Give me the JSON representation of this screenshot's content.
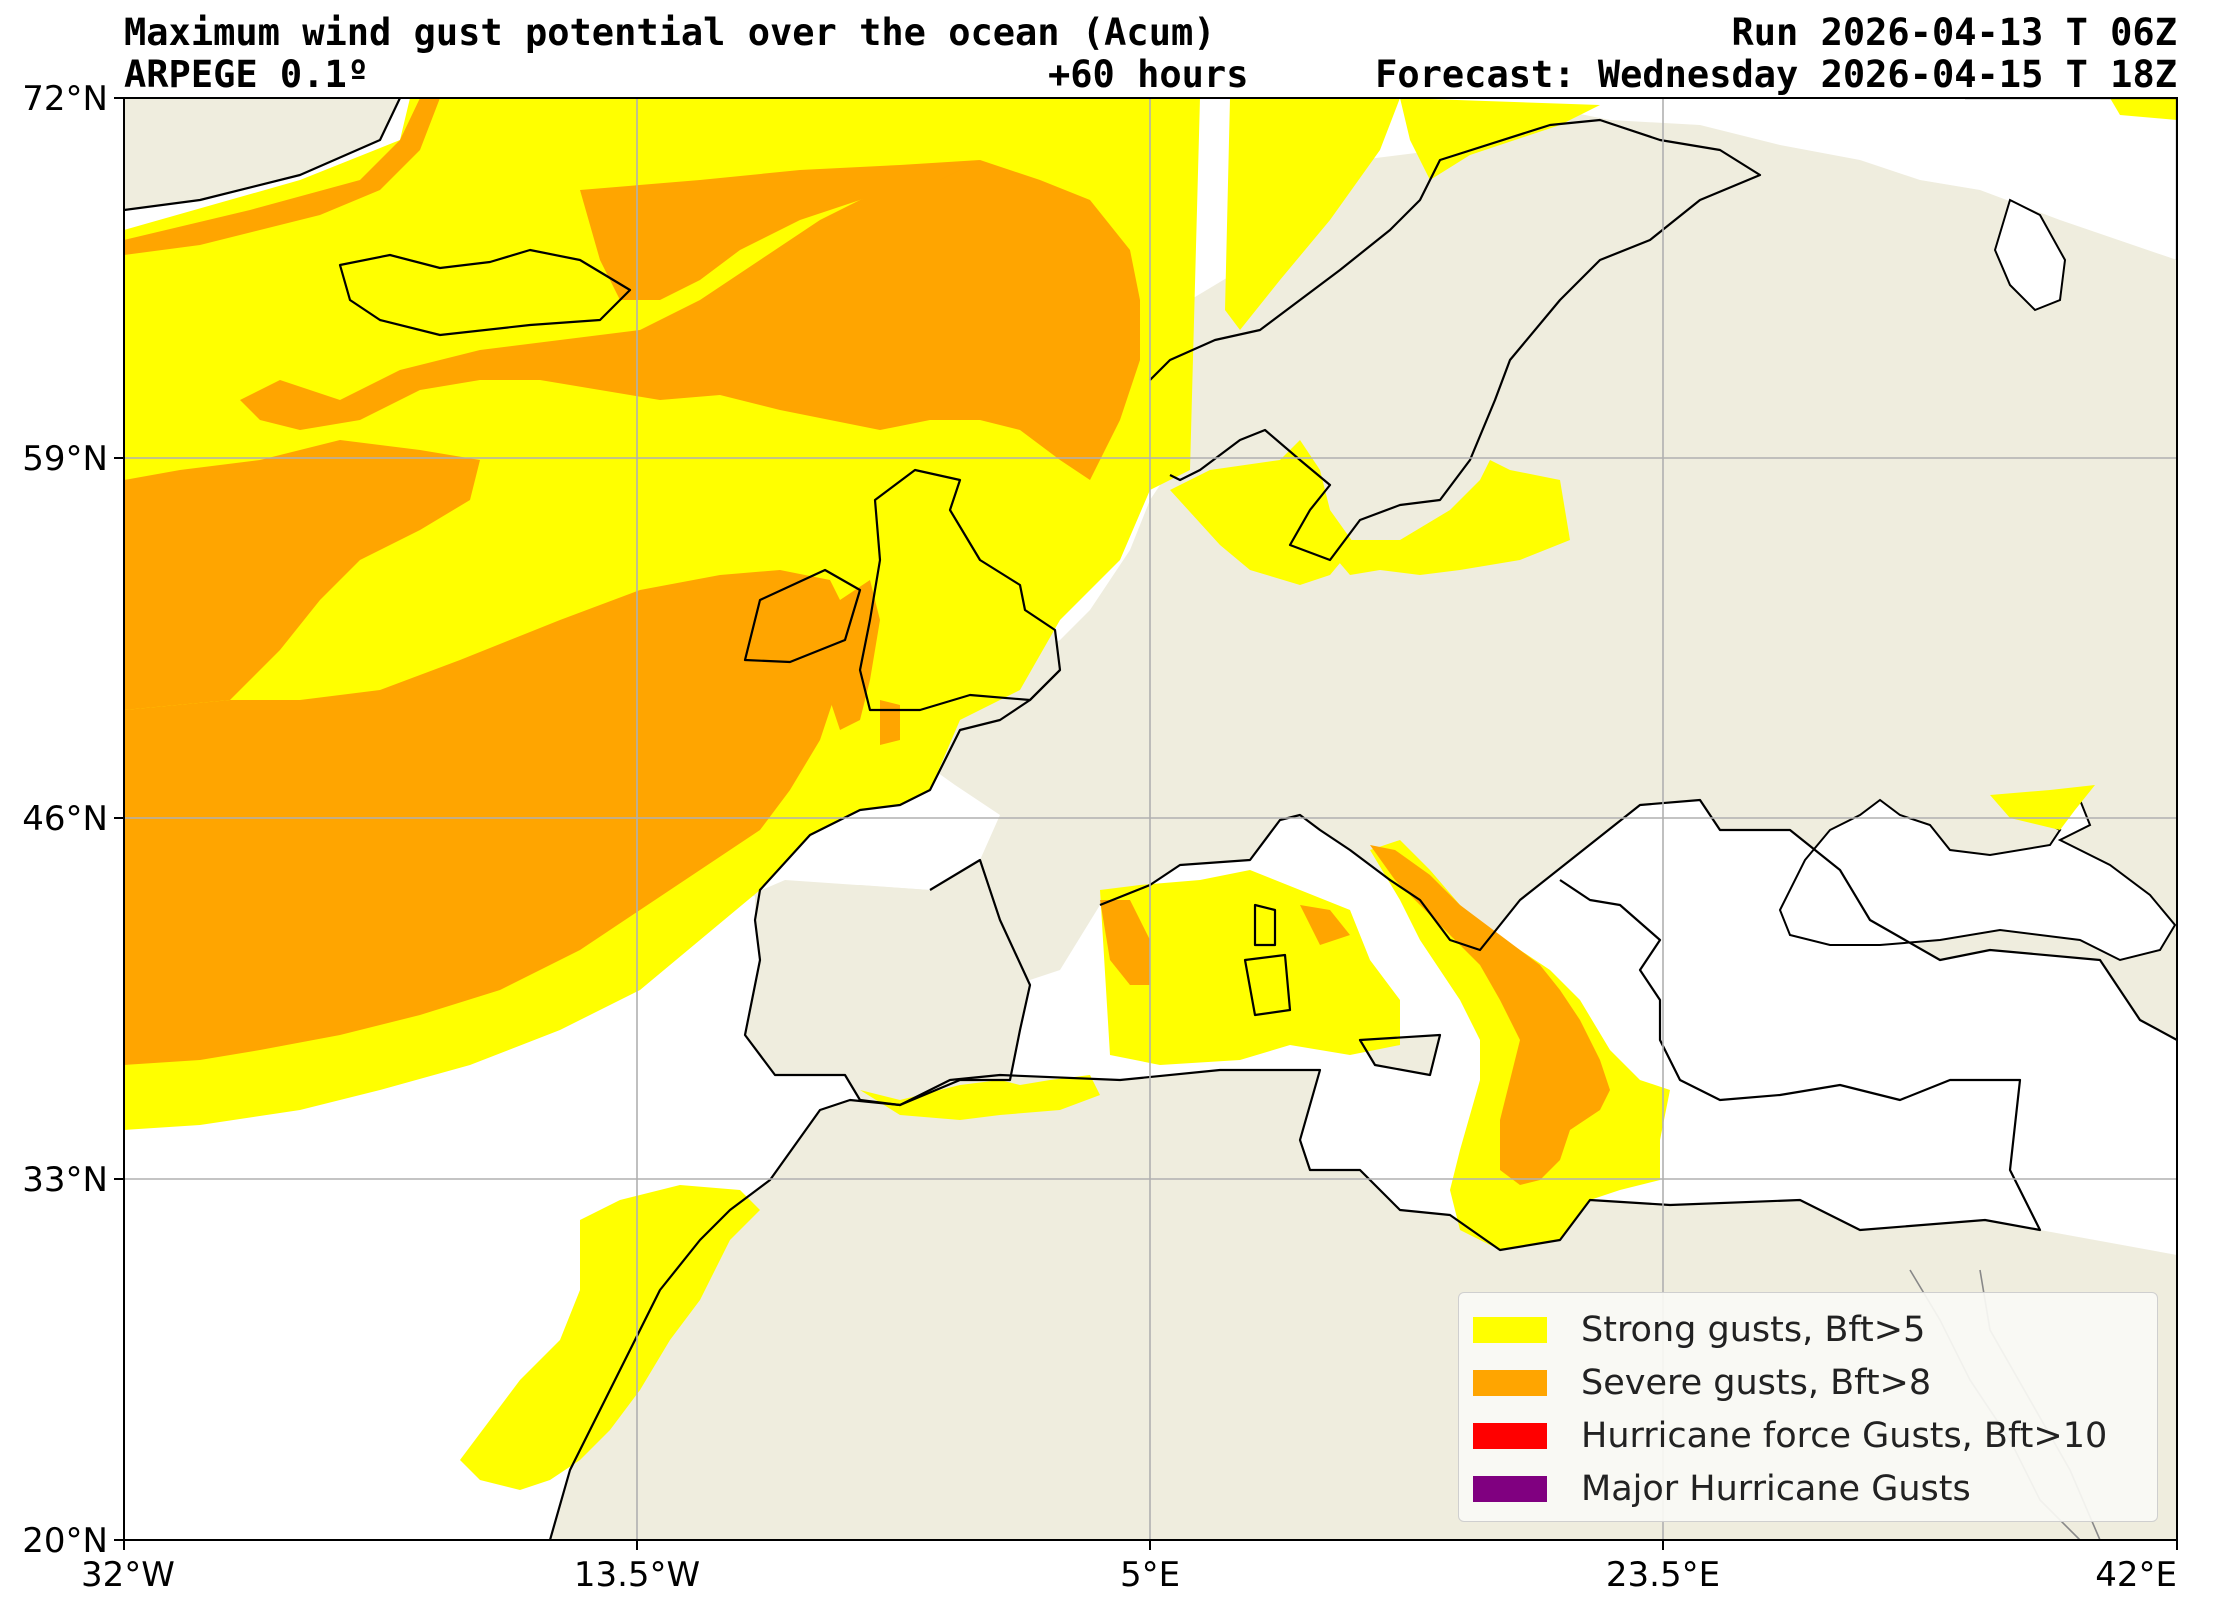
{
  "header": {
    "title": "Maximum wind gust potential over the ocean (Acum)",
    "model": "ARPEGE 0.1º",
    "lead_time": "+60 hours",
    "run": "Run 2026-04-13 T 06Z",
    "forecast": "Forecast: Wednesday 2026-04-15 T 18Z"
  },
  "map": {
    "lat_ticks": [
      "72°N",
      "59°N",
      "46°N",
      "33°N",
      "20°N"
    ],
    "lon_ticks": [
      "32°W",
      "13.5°W",
      "5°E",
      "23.5°E",
      "42°E"
    ],
    "gridlines": true,
    "colors": {
      "land": "#efedde",
      "sea": "#ffffff",
      "strong": "#ffff00",
      "severe": "#ffa500",
      "hurricane": "#ff0000",
      "major": "#800080",
      "coast": "#000000",
      "grid": "#b0b0b0"
    }
  },
  "legend": {
    "placement": "bottom-right",
    "items": [
      {
        "label": "Strong gusts, Bft>5",
        "color": "#ffff00"
      },
      {
        "label": "Severe gusts, Bft>8",
        "color": "#ffa500"
      },
      {
        "label": "Hurricane force Gusts, Bft>10",
        "color": "#ff0000"
      },
      {
        "label": "Major Hurricane Gusts",
        "color": "#800080"
      }
    ]
  }
}
